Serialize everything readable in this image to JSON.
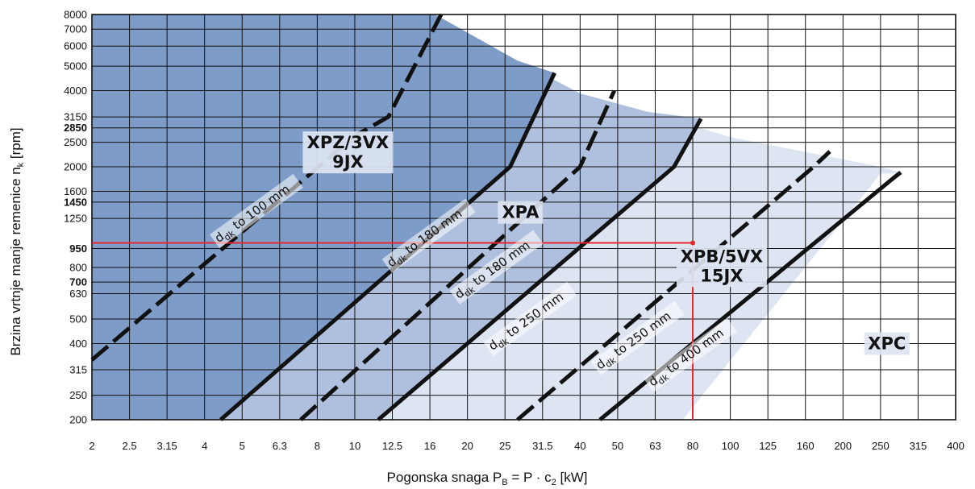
{
  "chart_data": {
    "type": "line",
    "title": "",
    "xlabel": {
      "prefix": "Pogonska snaga ",
      "P": "P",
      "P_sub": "B",
      "middle": " = P · c",
      "c_sub": "2",
      "suffix": " [kW]"
    },
    "ylabel": {
      "prefix": "Brzina vrtnje manje remenice n",
      "sub": "k",
      "suffix": " [rpm]"
    },
    "x_scale": "log",
    "y_scale": "log",
    "x_ticks": [
      "2",
      "2.5",
      "3.15",
      "4",
      "5",
      "6.3",
      "8",
      "10",
      "12.5",
      "16",
      "20",
      "25",
      "31.5",
      "40",
      "50",
      "63",
      "80",
      "100",
      "125",
      "160",
      "200",
      "250",
      "315",
      "400"
    ],
    "y_ticks": [
      "200",
      "250",
      "315",
      "400",
      "500",
      "630",
      "700",
      "800",
      "950",
      "1250",
      "1450",
      "1600",
      "2000",
      "2500",
      "2850",
      "3150",
      "4000",
      "5000",
      "6000",
      "7000",
      "8000"
    ],
    "y_ticks_bold": [
      "700",
      "950",
      "1450",
      "2850"
    ],
    "xlim": [
      2,
      400
    ],
    "ylim": [
      200,
      8000
    ],
    "grid": true,
    "colors": {
      "XPZ": "#7D9CC8",
      "XPA": "#AFC0DE",
      "XPB": "#DDE5F2",
      "XPC": "#FFFFFF",
      "curve": "#111111",
      "marker": "#E8262C"
    },
    "regions": [
      {
        "name": "XPZ/3VX",
        "name2": "9JX",
        "label_x": 9.6,
        "label_y": 2280,
        "boundary": [
          [
            2,
            200
          ],
          [
            2,
            8000
          ],
          [
            16.5,
            8000
          ],
          [
            27,
            5250
          ],
          [
            40,
            3900
          ],
          [
            60,
            3300
          ],
          [
            100,
            2620
          ],
          [
            250,
            2000
          ],
          [
            290,
            1880
          ],
          [
            250,
            1880
          ],
          [
            75,
            200
          ]
        ]
      },
      {
        "name": "XPA",
        "label_x": 27.5,
        "label_y": 1320
      },
      {
        "name": "XPB/5VX",
        "name2": "15JX",
        "label_x": 95,
        "label_y": 810
      },
      {
        "name": "XPC",
        "label_x": 260,
        "label_y": 400
      }
    ],
    "series": [
      {
        "label": "to 100 mm",
        "style": "dashed",
        "points": [
          [
            2,
            345
          ],
          [
            10,
            2650
          ],
          [
            12.2,
            3150
          ],
          [
            17.1,
            8000
          ]
        ]
      },
      {
        "label": "to 180 mm",
        "style": "solid",
        "points": [
          [
            4.4,
            200
          ],
          [
            25.8,
            2000
          ],
          [
            34,
            4700
          ]
        ]
      },
      {
        "label": "to 180 mm",
        "style": "dashed",
        "points": [
          [
            7.2,
            200
          ],
          [
            40,
            2000
          ],
          [
            49,
            4000
          ]
        ]
      },
      {
        "label": "to 250 mm",
        "style": "solid",
        "points": [
          [
            11.5,
            200
          ],
          [
            71,
            2000
          ],
          [
            84,
            3100
          ]
        ]
      },
      {
        "label": "to 250 mm",
        "style": "dashed",
        "points": [
          [
            27,
            200
          ],
          [
            168,
            2000
          ],
          [
            185,
            2300
          ]
        ]
      },
      {
        "label": "to 400 mm",
        "style": "solid",
        "points": [
          [
            45,
            200
          ],
          [
            270,
            1800
          ],
          [
            283,
            1900
          ]
        ]
      }
    ],
    "curve_labels": [
      {
        "text": "to 100 mm",
        "d": "d",
        "sub": "dk",
        "x": 4.35,
        "y": 1000,
        "angle": -36
      },
      {
        "text": "to 180 mm",
        "d": "d",
        "sub": "dk",
        "x": 12.4,
        "y": 800,
        "angle": -36
      },
      {
        "text": "to 180 mm",
        "d": "d",
        "sub": "dk",
        "x": 19,
        "y": 600,
        "angle": -36
      },
      {
        "text": "to 250 mm",
        "d": "d",
        "sub": "dk",
        "x": 23.2,
        "y": 375,
        "angle": -36
      },
      {
        "text": "to 250 mm",
        "d": "d",
        "sub": "dk",
        "x": 45,
        "y": 315,
        "angle": -36
      },
      {
        "text": "to 400 mm",
        "d": "d",
        "sub": "dk",
        "x": 62,
        "y": 270,
        "angle": -36
      }
    ],
    "markers": {
      "horizontal": {
        "y": 1000,
        "x_from": 2,
        "x_to": 80
      },
      "vertical": {
        "x": 80,
        "y_from": 200,
        "y_to": 1000
      },
      "point": [
        80,
        1000
      ]
    }
  }
}
